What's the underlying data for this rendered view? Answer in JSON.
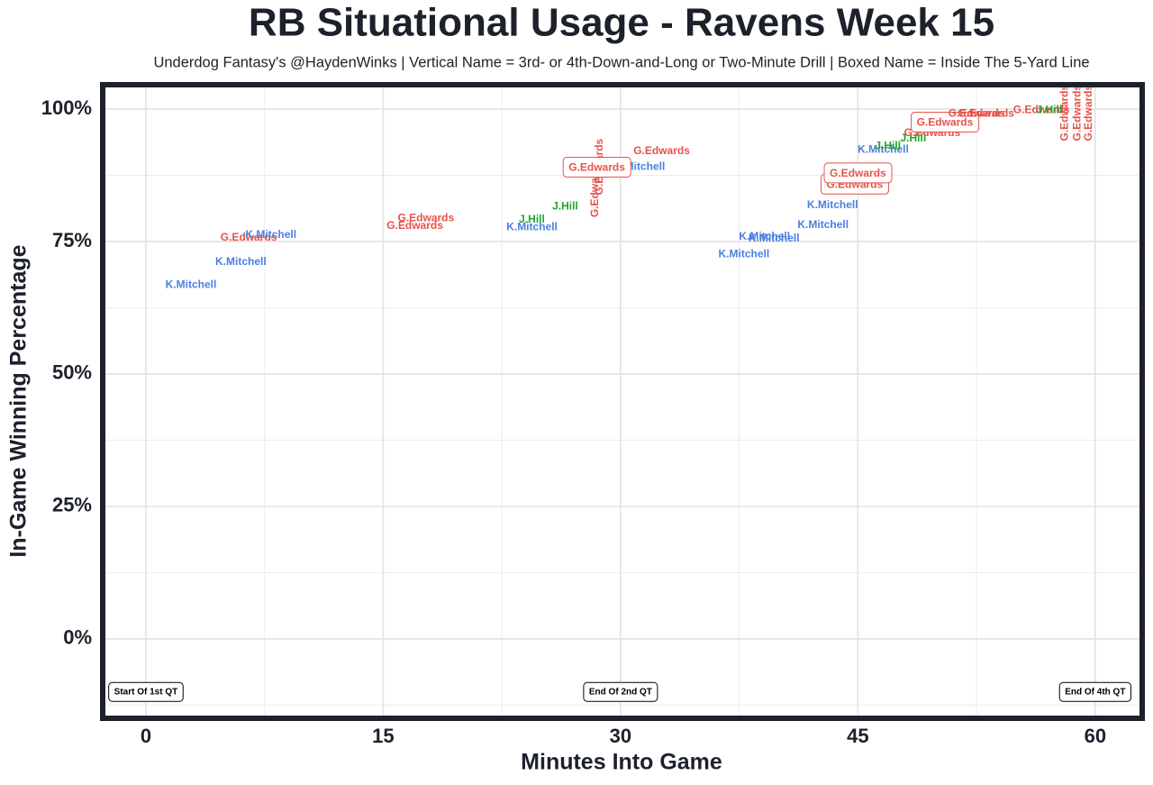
{
  "chart_data": {
    "type": "text-scatter",
    "title": "RB Situational Usage - Ravens Week 15",
    "subtitle": "Underdog Fantasy's @HaydenWinks | Vertical Name = 3rd- or 4th-Down-and-Long or Two-Minute Drill | Boxed Name = Inside The 5-Yard Line",
    "x_label": "Minutes Into Game",
    "y_label": "In-Game Winning Percentage",
    "xlim": [
      -2.73,
      62.97
    ],
    "ylim": [
      -15,
      104.6
    ],
    "xticks": [
      0,
      15,
      30,
      45,
      60
    ],
    "yticks": [
      {
        "value": 0,
        "label": "0%"
      },
      {
        "value": 25,
        "label": "25%"
      },
      {
        "value": 50,
        "label": "50%"
      },
      {
        "value": 75,
        "label": "75%"
      },
      {
        "value": 100,
        "label": "100%"
      }
    ],
    "grid": true,
    "points": [
      {
        "label": "K.Mitchell",
        "x": 2.85,
        "y": 66.8,
        "color": "#4a7fe0"
      },
      {
        "label": "K.Mitchell",
        "x": 6.0,
        "y": 71.1,
        "color": "#4a7fe0"
      },
      {
        "label": "G.Edwards",
        "x": 6.5,
        "y": 75.7,
        "color": "#e5534b"
      },
      {
        "label": "K.Mitchell",
        "x": 7.9,
        "y": 76.2,
        "color": "#4a7fe0"
      },
      {
        "label": "G.Edwards",
        "x": 17.7,
        "y": 79.4,
        "color": "#e5534b"
      },
      {
        "label": "G.Edwards",
        "x": 17.0,
        "y": 77.9,
        "color": "#e5534b"
      },
      {
        "label": "J.Hill",
        "x": 24.4,
        "y": 79.1,
        "color": "#22a52a"
      },
      {
        "label": "K.Mitchell",
        "x": 24.4,
        "y": 77.7,
        "color": "#4a7fe0"
      },
      {
        "label": "J.Hill",
        "x": 26.5,
        "y": 81.6,
        "color": "#22a52a"
      },
      {
        "label": "G.Edwards",
        "x": 28.4,
        "y": 84.9,
        "color": "#e5534b",
        "vertical": true
      },
      {
        "label": "G.Edwards",
        "x": 28.7,
        "y": 89.1,
        "color": "#e5534b",
        "vertical": true
      },
      {
        "label": "K.Mitchell",
        "x": 31.2,
        "y": 89.1,
        "color": "#4a7fe0"
      },
      {
        "label": "G.Edwards",
        "x": 28.5,
        "y": 88.9,
        "color": "#e5534b",
        "boxed": true
      },
      {
        "label": "G.Edwards",
        "x": 32.6,
        "y": 92.0,
        "color": "#e5534b"
      },
      {
        "label": "K.Mitchell",
        "x": 37.8,
        "y": 72.6,
        "color": "#4a7fe0"
      },
      {
        "label": "K.Mitchell",
        "x": 39.1,
        "y": 75.9,
        "color": "#4a7fe0"
      },
      {
        "label": "K.Mitchell",
        "x": 39.7,
        "y": 75.5,
        "color": "#4a7fe0"
      },
      {
        "label": "K.Mitchell",
        "x": 42.8,
        "y": 78.1,
        "color": "#4a7fe0"
      },
      {
        "label": "K.Mitchell",
        "x": 43.4,
        "y": 81.8,
        "color": "#4a7fe0"
      },
      {
        "label": "G.Edwards",
        "x": 44.8,
        "y": 85.7,
        "color": "#e5534b",
        "boxed": true
      },
      {
        "label": "G.Edwards",
        "x": 45.0,
        "y": 87.8,
        "color": "#e5534b",
        "boxed": true
      },
      {
        "label": "K.Mitchell",
        "x": 46.6,
        "y": 92.3,
        "color": "#4a7fe0"
      },
      {
        "label": "J.Hill",
        "x": 46.9,
        "y": 93.0,
        "color": "#22a52a"
      },
      {
        "label": "J.Hill",
        "x": 48.5,
        "y": 94.4,
        "color": "#22a52a"
      },
      {
        "label": "G.Edwards",
        "x": 49.7,
        "y": 95.4,
        "color": "#e5534b"
      },
      {
        "label": "G.Edwards",
        "x": 50.5,
        "y": 97.4,
        "color": "#e5534b",
        "boxed": true
      },
      {
        "label": "G.Edwards",
        "x": 52.5,
        "y": 99.1,
        "color": "#e5534b"
      },
      {
        "label": "G.Edwards",
        "x": 53.1,
        "y": 99.1,
        "color": "#e5534b"
      },
      {
        "label": "G.Edwards",
        "x": 56.6,
        "y": 99.8,
        "color": "#e5534b"
      },
      {
        "label": "J.Hill",
        "x": 57.1,
        "y": 99.8,
        "color": "#22a52a"
      },
      {
        "label": "G.Edwards",
        "x": 58.1,
        "y": 99.3,
        "color": "#e5534b",
        "vertical": true
      },
      {
        "label": "G.Edwards",
        "x": 58.9,
        "y": 99.3,
        "color": "#e5534b",
        "vertical": true
      },
      {
        "label": "G.Edwards",
        "x": 59.6,
        "y": 99.3,
        "color": "#e5534b",
        "vertical": true
      }
    ],
    "annotations": [
      {
        "label": "Start Of 1st QT",
        "x": 0,
        "y": -10
      },
      {
        "label": "End Of 2nd QT",
        "x": 30,
        "y": -10
      },
      {
        "label": "End Of 4th QT",
        "x": 60,
        "y": -10
      }
    ]
  }
}
